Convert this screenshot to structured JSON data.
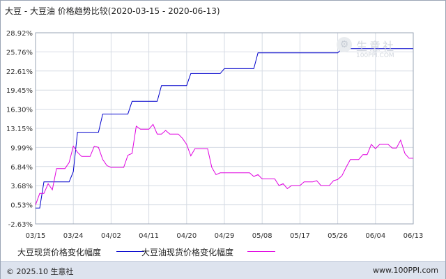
{
  "title": "大豆 - 大豆油 价格趋势比较(2020-03-15 - 2020-06-13)",
  "watermark": {
    "name": "生意社",
    "url": "100PPI.COM",
    "icon": "gear-icon"
  },
  "footer": {
    "copyright": "© 2025.10 生意社",
    "site": "www.100PPI.com"
  },
  "chart_data": {
    "type": "line",
    "title": "大豆 - 大豆油 价格趋势比较(2020-03-15 - 2020-06-13)",
    "xlabel": "",
    "ylabel": "",
    "x_ticks": [
      "03/15",
      "03/24",
      "04/02",
      "04/11",
      "04/20",
      "04/29",
      "05/08",
      "05/17",
      "05/26",
      "06/04",
      "06/13"
    ],
    "y_ticks": [
      "28.92%",
      "25.76%",
      "22.61%",
      "19.45%",
      "16.30%",
      "13.15%",
      "9.99%",
      "6.84%",
      "3.68%",
      "0.53%",
      "-2.63%"
    ],
    "ylim": [
      -2.63,
      28.92
    ],
    "xlim": [
      "03/15",
      "06/13"
    ],
    "grid": true,
    "legend_position": "bottom",
    "series": [
      {
        "name": "大豆现货价格变化幅度",
        "color": "#0000cc",
        "x": [
          "03/15",
          "03/16",
          "03/17",
          "03/18",
          "03/23",
          "03/24",
          "03/25",
          "03/30",
          "03/31",
          "04/06",
          "04/07",
          "04/08",
          "04/13",
          "04/14",
          "04/20",
          "04/21",
          "04/28",
          "04/29",
          "05/06",
          "05/07",
          "05/26",
          "05/27",
          "06/13"
        ],
        "y": [
          0,
          0,
          4.3,
          4.3,
          4.3,
          6.0,
          12.5,
          12.5,
          15.5,
          15.5,
          17.6,
          17.6,
          17.6,
          20.2,
          20.2,
          22.2,
          22.2,
          23.0,
          23.0,
          25.6,
          25.6,
          26.3,
          26.3
        ]
      },
      {
        "name": "大豆油现货价格变化幅度",
        "color": "#e000e0",
        "x": [
          "03/15",
          "03/16",
          "03/17",
          "03/18",
          "03/19",
          "03/20",
          "03/21",
          "03/22",
          "03/23",
          "03/24",
          "03/25",
          "03/26",
          "03/27",
          "03/28",
          "03/29",
          "03/30",
          "03/31",
          "04/01",
          "04/02",
          "04/03",
          "04/04",
          "04/05",
          "04/06",
          "04/07",
          "04/08",
          "04/09",
          "04/10",
          "04/11",
          "04/12",
          "04/13",
          "04/14",
          "04/15",
          "04/16",
          "04/17",
          "04/18",
          "04/19",
          "04/20",
          "04/21",
          "04/22",
          "04/23",
          "04/24",
          "04/25",
          "04/26",
          "04/27",
          "04/28",
          "04/29",
          "04/30",
          "05/01",
          "05/02",
          "05/03",
          "05/04",
          "05/05",
          "05/06",
          "05/07",
          "05/08",
          "05/09",
          "05/10",
          "05/11",
          "05/12",
          "05/13",
          "05/14",
          "05/15",
          "05/16",
          "05/17",
          "05/18",
          "05/19",
          "05/20",
          "05/21",
          "05/22",
          "05/23",
          "05/24",
          "05/25",
          "05/26",
          "05/27",
          "05/28",
          "05/29",
          "05/30",
          "05/31",
          "06/01",
          "06/02",
          "06/03",
          "06/04",
          "06/05",
          "06/06",
          "06/07",
          "06/08",
          "06/09",
          "06/10",
          "06/11",
          "06/12",
          "06/13"
        ],
        "y": [
          0.5,
          2.4,
          2.4,
          4.0,
          3.0,
          6.5,
          6.5,
          6.5,
          7.5,
          10.2,
          9.2,
          8.5,
          8.5,
          8.5,
          10.2,
          10.0,
          8.0,
          7.0,
          6.7,
          6.7,
          6.7,
          6.7,
          8.7,
          9.0,
          13.5,
          13.0,
          13.0,
          13.0,
          13.8,
          12.2,
          12.2,
          12.8,
          12.2,
          12.2,
          12.2,
          11.5,
          10.5,
          8.6,
          9.8,
          9.8,
          9.8,
          9.8,
          6.7,
          5.5,
          5.8,
          5.8,
          5.8,
          5.8,
          5.8,
          5.8,
          5.8,
          5.8,
          5.2,
          5.5,
          4.8,
          4.8,
          4.8,
          4.8,
          3.7,
          4.0,
          3.2,
          3.7,
          3.7,
          3.7,
          4.3,
          4.3,
          4.3,
          4.5,
          3.7,
          3.7,
          3.7,
          4.5,
          4.7,
          5.3,
          6.7,
          8.0,
          8.0,
          8.0,
          8.8,
          8.8,
          10.5,
          9.8,
          10.5,
          10.5,
          10.5,
          9.9,
          9.9,
          11.2,
          9.0,
          8.2,
          8.2
        ]
      }
    ]
  }
}
